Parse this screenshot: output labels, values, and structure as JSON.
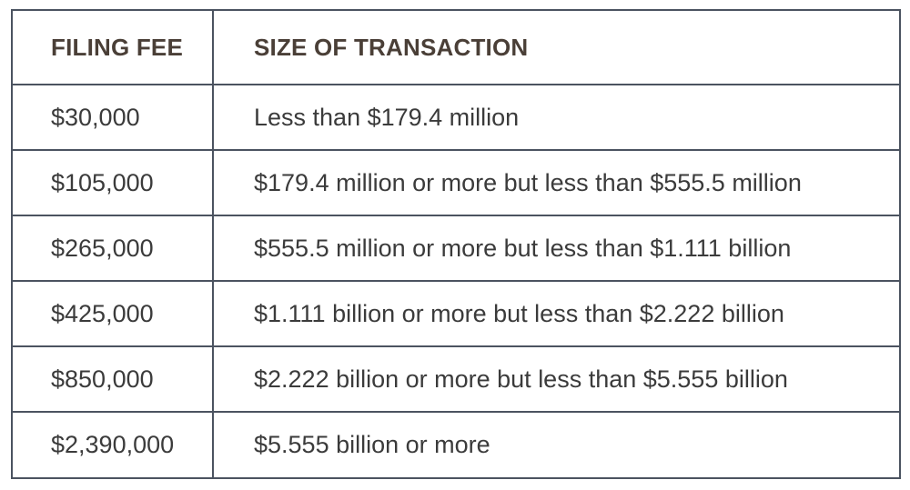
{
  "table": {
    "headers": {
      "filing_fee": "FILING FEE",
      "size_of_transaction": "SIZE OF TRANSACTION"
    },
    "rows": [
      {
        "fee": "$30,000",
        "size": "Less than $179.4 million"
      },
      {
        "fee": "$105,000",
        "size": "$179.4 million or more but less than $555.5 million"
      },
      {
        "fee": "$265,000",
        "size": "$555.5 million or more but less than $1.111 billion"
      },
      {
        "fee": "$425,000",
        "size": "$1.111 billion or more but less than $2.222 billion"
      },
      {
        "fee": "$850,000",
        "size": "$2.222 billion or more but less than $5.555 billion"
      },
      {
        "fee": "$2,390,000",
        "size": "$5.555 billion or more"
      }
    ],
    "colors": {
      "border": "#4b5360",
      "header_text": "#4a3f37",
      "body_text": "#3b3b3b"
    }
  }
}
